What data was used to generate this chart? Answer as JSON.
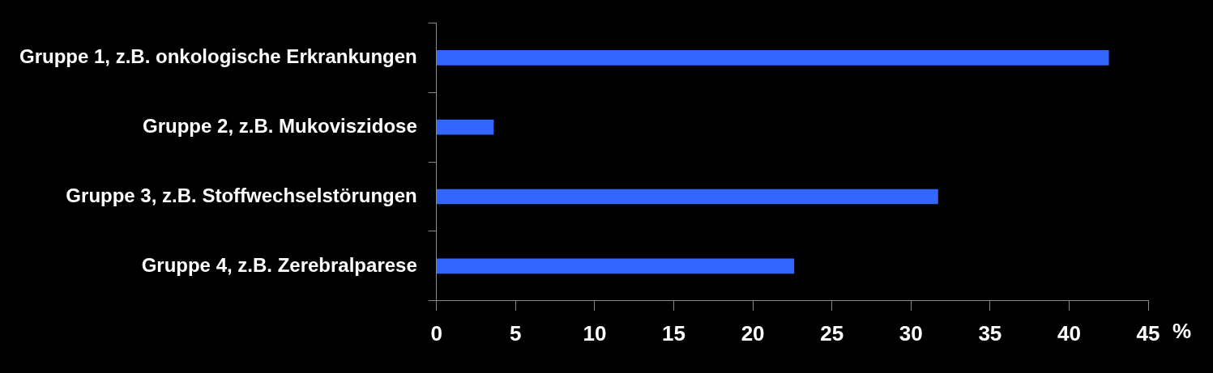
{
  "chart_data": {
    "type": "bar",
    "orientation": "horizontal",
    "xlabel": "%",
    "categories": [
      "Gruppe 1, z.B. onkologische Erkrankungen",
      "Gruppe 2, z.B. Mukoviszidose",
      "Gruppe 3, z.B. Stoffwechselstörungen",
      "Gruppe 4, z.B. Zerebralparese"
    ],
    "values": [
      42.5,
      3.6,
      31.7,
      22.6
    ],
    "color": "#3366ff",
    "xlim": [
      0,
      45
    ],
    "xticks": [
      0,
      5,
      10,
      15,
      20,
      25,
      30,
      35,
      40,
      45
    ],
    "grid": false,
    "legend": false
  }
}
